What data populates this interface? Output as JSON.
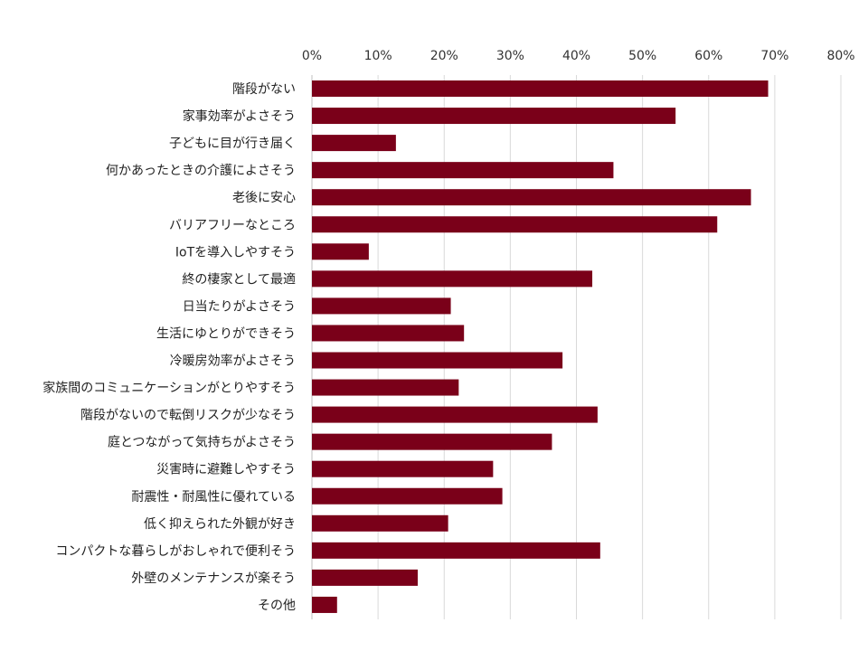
{
  "chart_data": {
    "type": "bar",
    "orientation": "horizontal",
    "categories": [
      "階段がない",
      "家事効率がよさそう",
      "子どもに目が行き届く",
      "何かあったときの介護によさそう",
      "老後に安心",
      "バリアフリーなところ",
      "IoTを導入しやすそう",
      "終の棲家として最適",
      "日当たりがよさそう",
      "生活にゆとりができそう",
      "冷暖房効率がよさそう",
      "家族間のコミュニケーションがとりやすそう",
      "階段がないので転倒リスクが少なそう",
      "庭とつながって気持ちがよさそう",
      "災害時に避難しやすそう",
      "耐震性・耐風性に優れている",
      "低く抑えられた外観が好き",
      "コンパクトな暮らしがおしゃれで便利そう",
      "外壁のメンテナンスが楽そう",
      "その他"
    ],
    "values": [
      69,
      55,
      12.7,
      45.6,
      66.4,
      61.3,
      8.6,
      42.4,
      21,
      23,
      37.9,
      22.2,
      43.2,
      36.3,
      27.4,
      28.8,
      20.6,
      43.6,
      16,
      3.8
    ],
    "xlim": [
      0,
      80
    ],
    "xticks": [
      0,
      10,
      20,
      30,
      40,
      50,
      60,
      70,
      80
    ],
    "tick_labels": [
      "0%",
      "10%",
      "20%",
      "30%",
      "40%",
      "50%",
      "60%",
      "70%",
      "80%"
    ],
    "tick_position": "top",
    "grid": true,
    "legend": "none",
    "bar_color": "#7a0019",
    "title": "",
    "xlabel": "",
    "ylabel": ""
  }
}
